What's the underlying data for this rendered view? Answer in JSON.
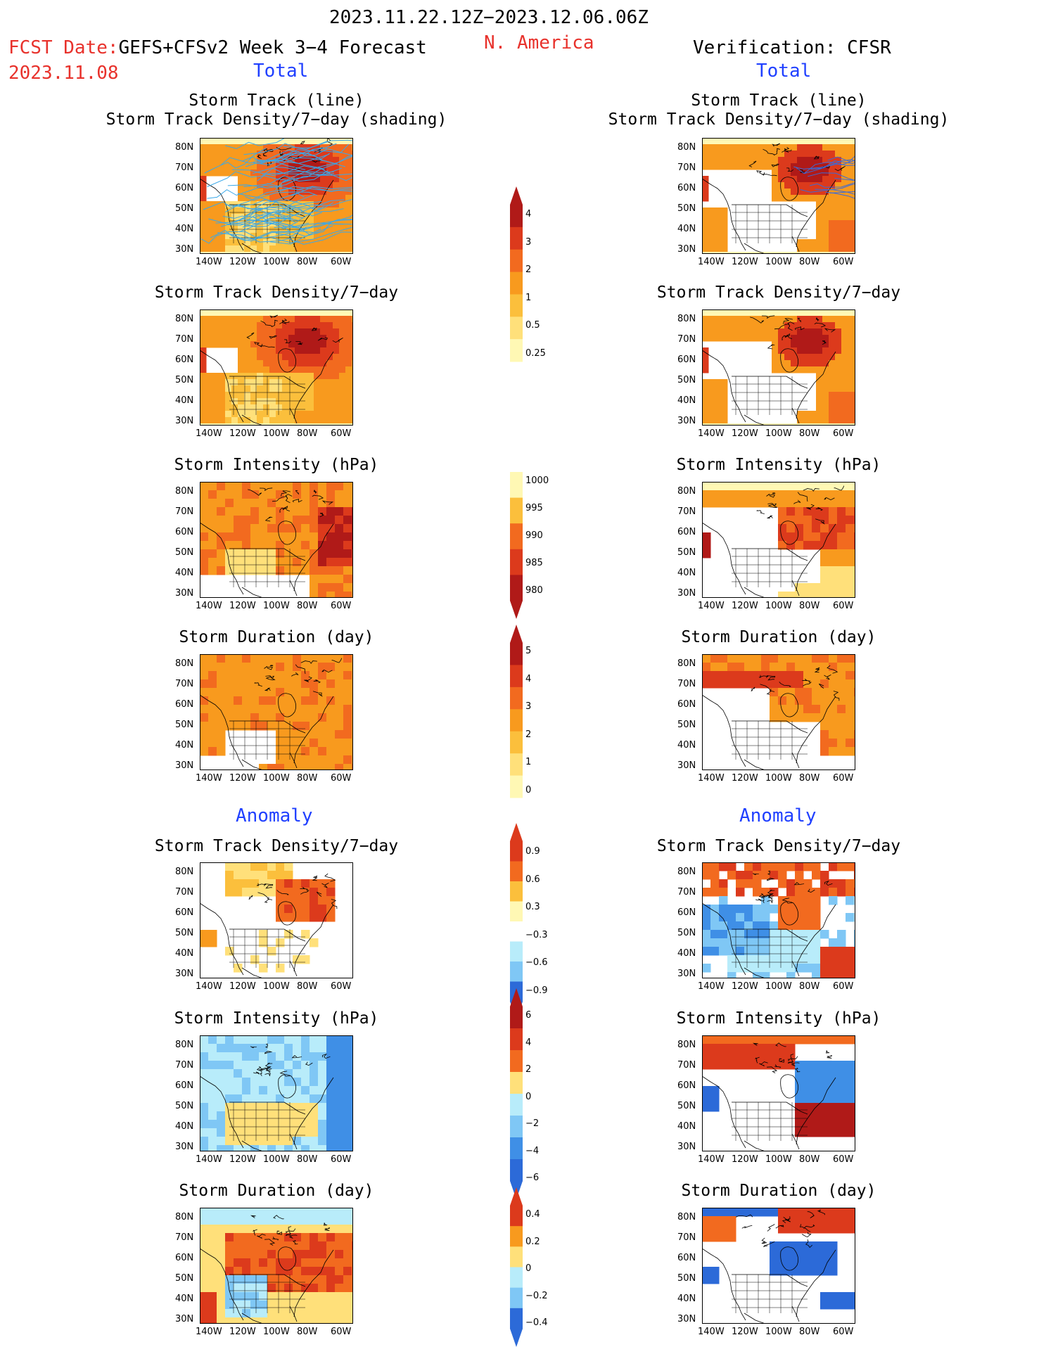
{
  "header": {
    "date_range": "2023.11.22.12Z−2023.12.06.06Z",
    "region": "N. America",
    "fcst_label": "FCST Date:",
    "fcst_model": "GEFS+CFSv2 Week 3−4 Forecast",
    "fcst_date": "2023.11.08",
    "verification": "Verification: CFSR",
    "left_total": "Total",
    "right_total": "Total",
    "left_anomaly": "Anomaly",
    "right_anomaly": "Anomaly"
  },
  "panel_titles": {
    "track_line": "Storm Track (line)",
    "track_shading": "Storm Track Density/7−day (shading)",
    "density": "Storm Track Density/7−day",
    "intensity": "Storm Intensity (hPa)",
    "duration": "Storm Duration (day)"
  },
  "axes": {
    "lat_labels": [
      "80N",
      "70N",
      "60N",
      "50N",
      "40N",
      "30N"
    ],
    "lon_labels": [
      "140W",
      "120W",
      "100W",
      "80W",
      "60W"
    ]
  },
  "colorbars": [
    {
      "id": "density",
      "labels": [
        "4",
        "3",
        "2",
        "1",
        "0.5",
        "0.25"
      ]
    },
    {
      "id": "intensity",
      "labels": [
        "1000",
        "995",
        "990",
        "985",
        "980"
      ]
    },
    {
      "id": "duration",
      "labels": [
        "5",
        "4",
        "3",
        "2",
        "1",
        "0"
      ]
    },
    {
      "id": "density-anom",
      "labels": [
        "0.9",
        "0.6",
        "0.3",
        "−0.3",
        "−0.6",
        "−0.9"
      ]
    },
    {
      "id": "intensity-anom",
      "labels": [
        "6",
        "4",
        "2",
        "0",
        "−2",
        "−4",
        "−6"
      ]
    },
    {
      "id": "duration-anom",
      "labels": [
        "0.4",
        "0.2",
        "0",
        "−0.2",
        "−0.4"
      ]
    }
  ],
  "colors": {
    "red_text": "#e8322c",
    "blue_text": "#2040ff",
    "warm": [
      "#fff8b4",
      "#ffe07a",
      "#fbbf3c",
      "#f89a1e",
      "#f26a1f",
      "#dc3a1c",
      "#b01a18"
    ],
    "cool": [
      "#b8ecfa",
      "#7fc7f5",
      "#3f8fe6",
      "#2c6ad8"
    ],
    "track_lines": "#3aa8e8"
  }
}
